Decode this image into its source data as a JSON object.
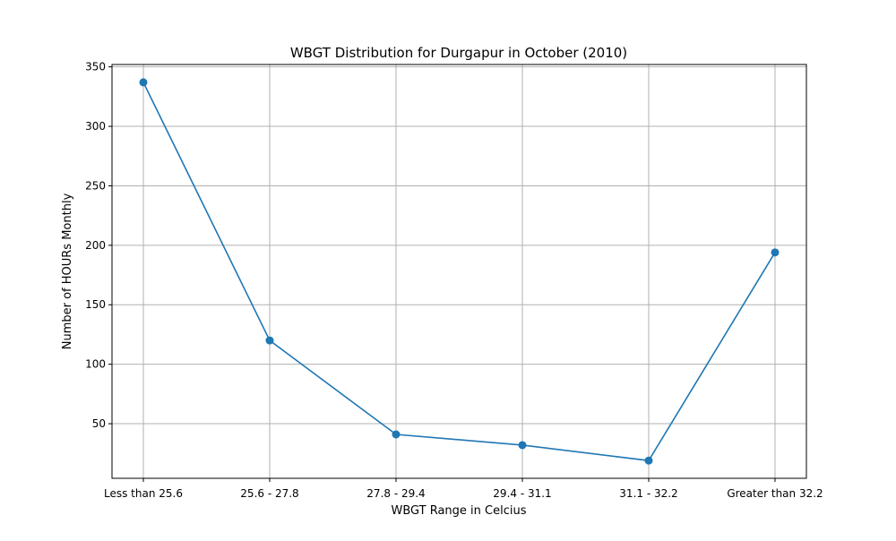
{
  "chart_data": {
    "type": "line",
    "title": "WBGT Distribution for Durgapur in October (2010)",
    "xlabel": "WBGT Range in Celcius",
    "ylabel": "Number of HOURs Monthly",
    "categories": [
      "Less than 25.6",
      "25.6 - 27.8",
      "27.8 - 29.4",
      "29.4 - 31.1",
      "31.1 - 32.2",
      "Greater than 32.2"
    ],
    "values": [
      337,
      120,
      41,
      32,
      19,
      194
    ],
    "y_ticks": [
      50,
      100,
      150,
      200,
      250,
      300,
      350
    ],
    "ylim": [
      4.1,
      352
    ],
    "grid": true,
    "line_color": "#1f77b4",
    "marker": "circle"
  }
}
